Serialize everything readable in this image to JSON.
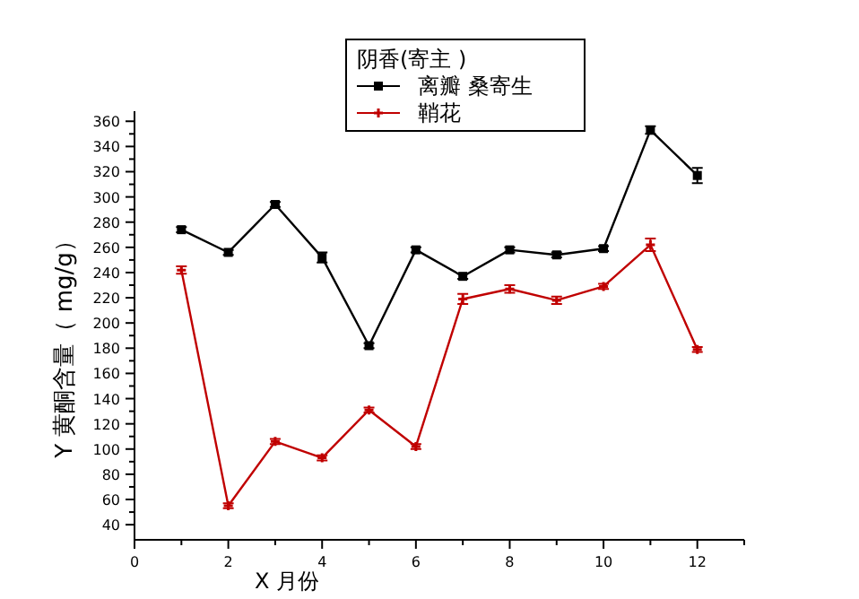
{
  "chart_data": {
    "type": "line",
    "xlabel": "X 月份",
    "ylabel": "Y 黄酮含量（ mg/g）",
    "legend_title": "阴香(寄主 )",
    "x": [
      1,
      2,
      3,
      4,
      5,
      6,
      7,
      8,
      9,
      10,
      11,
      12
    ],
    "series": [
      {
        "name": "离瓣 桑寄生",
        "color": "#000000",
        "marker": "square",
        "values": [
          274,
          256,
          294,
          252,
          182,
          258,
          237,
          258,
          254,
          259,
          353,
          317
        ],
        "errors": [
          2,
          2,
          2,
          4,
          2,
          2,
          2,
          2,
          2,
          2,
          3,
          6
        ]
      },
      {
        "name": "鞘花",
        "color": "#c00000",
        "marker": "cross",
        "values": [
          242,
          55,
          106,
          93,
          131,
          102,
          219,
          227,
          218,
          229,
          262,
          179
        ],
        "errors": [
          3,
          2,
          2,
          2,
          2,
          2,
          4,
          3,
          3,
          2,
          5,
          2
        ]
      }
    ],
    "xlim": [
      0,
      13
    ],
    "ylim": [
      28,
      368
    ],
    "xticks": [
      0,
      {
        "value": 1,
        "label": null
      },
      2,
      {
        "value": 3,
        "label": null
      },
      4,
      {
        "value": 5,
        "label": null
      },
      6,
      {
        "value": 7,
        "label": null
      },
      8,
      {
        "value": 9,
        "label": null
      },
      10,
      {
        "value": 11,
        "label": null
      },
      12,
      {
        "value": 13,
        "label": null
      }
    ],
    "yticks": [
      40,
      60,
      80,
      100,
      120,
      140,
      160,
      180,
      200,
      220,
      240,
      260,
      280,
      300,
      320,
      340,
      360
    ],
    "line_style": "solid",
    "grid": false,
    "legend": "top"
  }
}
